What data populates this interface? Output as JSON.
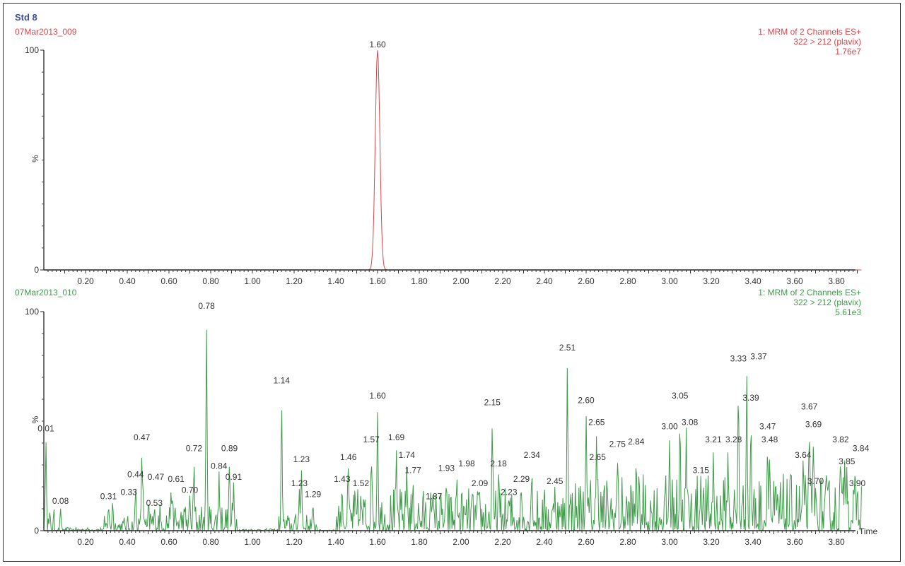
{
  "title": "Std 8",
  "colors": {
    "title": "#3b4f9b",
    "trace1": "#d8454a",
    "trace2": "#3f9a4a",
    "axis": "#222222"
  },
  "chart_data": [
    {
      "type": "line",
      "sample": "07Mar2013_009",
      "info": [
        "1: MRM of 2 Channels ES+",
        "322 > 212 (plavix)",
        "1.76e7"
      ],
      "ylabel": "%",
      "y_ticks": [
        "0",
        "100"
      ],
      "ylim": [
        0,
        100
      ],
      "xlim": [
        0,
        3.89
      ],
      "x_ticks": [
        "0.20",
        "0.40",
        "0.60",
        "0.80",
        "1.00",
        "1.20",
        "1.40",
        "1.60",
        "1.80",
        "2.00",
        "2.20",
        "2.40",
        "2.60",
        "2.80",
        "3.00",
        "3.20",
        "3.40",
        "3.60",
        "3.80"
      ],
      "peaks": [
        {
          "label": "1.60",
          "x": 1.6,
          "y": 100
        }
      ]
    },
    {
      "type": "line",
      "sample": "07Mar2013_010",
      "info": [
        "1: MRM of 2 Channels ES+",
        "322 > 212 (plavix)",
        "5.61e3"
      ],
      "ylabel": "%",
      "xlabel": "Time",
      "y_ticks": [
        "0",
        "100"
      ],
      "ylim": [
        0,
        100
      ],
      "xlim": [
        0,
        3.89
      ],
      "x_ticks": [
        "0.20",
        "0.40",
        "0.60",
        "0.80",
        "1.00",
        "1.20",
        "1.40",
        "1.60",
        "1.80",
        "2.00",
        "2.20",
        "2.40",
        "2.60",
        "2.80",
        "3.00",
        "3.20",
        "3.40",
        "3.60",
        "3.80"
      ],
      "peaks": [
        {
          "label": "0.01",
          "x": 0.01,
          "y": 44
        },
        {
          "label": "0.08",
          "x": 0.08,
          "y": 11
        },
        {
          "label": "0.31",
          "x": 0.31,
          "y": 13
        },
        {
          "label": "0.33",
          "x": 0.33,
          "y": 15
        },
        {
          "label": "0.44",
          "x": 0.44,
          "y": 23
        },
        {
          "label": "0.47",
          "x": 0.47,
          "y": 40
        },
        {
          "label": "0.47",
          "x": 0.475,
          "y": 22
        },
        {
          "label": "0.53",
          "x": 0.53,
          "y": 10
        },
        {
          "label": "0.61",
          "x": 0.61,
          "y": 21
        },
        {
          "label": "0.70",
          "x": 0.7,
          "y": 16
        },
        {
          "label": "0.72",
          "x": 0.72,
          "y": 35
        },
        {
          "label": "0.78",
          "x": 0.78,
          "y": 100
        },
        {
          "label": "0.84",
          "x": 0.84,
          "y": 27
        },
        {
          "label": "0.89",
          "x": 0.89,
          "y": 35
        },
        {
          "label": "0.91",
          "x": 0.91,
          "y": 22
        },
        {
          "label": "1.14",
          "x": 1.14,
          "y": 66
        },
        {
          "label": "1.23",
          "x": 1.235,
          "y": 30
        },
        {
          "label": "1.23",
          "x": 1.225,
          "y": 19
        },
        {
          "label": "1.29",
          "x": 1.29,
          "y": 14
        },
        {
          "label": "1.43",
          "x": 1.43,
          "y": 21
        },
        {
          "label": "1.46",
          "x": 1.46,
          "y": 31
        },
        {
          "label": "1.52",
          "x": 1.52,
          "y": 19
        },
        {
          "label": "1.57",
          "x": 1.57,
          "y": 39
        },
        {
          "label": "1.60",
          "x": 1.6,
          "y": 59
        },
        {
          "label": "1.69",
          "x": 1.69,
          "y": 40
        },
        {
          "label": "1.74",
          "x": 1.74,
          "y": 32
        },
        {
          "label": "1.77",
          "x": 1.77,
          "y": 25
        },
        {
          "label": "1.87",
          "x": 1.87,
          "y": 13
        },
        {
          "label": "1.93",
          "x": 1.93,
          "y": 26
        },
        {
          "label": "1.98",
          "x": 1.98,
          "y": 28
        },
        {
          "label": "2.09",
          "x": 2.09,
          "y": 19
        },
        {
          "label": "2.15",
          "x": 2.15,
          "y": 56
        },
        {
          "label": "2.18",
          "x": 2.18,
          "y": 28
        },
        {
          "label": "2.23",
          "x": 2.23,
          "y": 15
        },
        {
          "label": "2.29",
          "x": 2.29,
          "y": 21
        },
        {
          "label": "2.34",
          "x": 2.34,
          "y": 32
        },
        {
          "label": "2.45",
          "x": 2.45,
          "y": 20
        },
        {
          "label": "2.51",
          "x": 2.51,
          "y": 81
        },
        {
          "label": "2.60",
          "x": 2.6,
          "y": 57
        },
        {
          "label": "2.65",
          "x": 2.65,
          "y": 47
        },
        {
          "label": "2.65",
          "x": 2.655,
          "y": 31
        },
        {
          "label": "2.75",
          "x": 2.75,
          "y": 37
        },
        {
          "label": "2.84",
          "x": 2.84,
          "y": 38
        },
        {
          "label": "3.00",
          "x": 3.0,
          "y": 45
        },
        {
          "label": "3.05",
          "x": 3.05,
          "y": 59
        },
        {
          "label": "3.08",
          "x": 3.08,
          "y": 47
        },
        {
          "label": "3.15",
          "x": 3.15,
          "y": 25
        },
        {
          "label": "3.21",
          "x": 3.21,
          "y": 39
        },
        {
          "label": "3.28",
          "x": 3.28,
          "y": 39
        },
        {
          "label": "3.33",
          "x": 3.33,
          "y": 76
        },
        {
          "label": "3.37",
          "x": 3.37,
          "y": 77
        },
        {
          "label": "3.39",
          "x": 3.39,
          "y": 58
        },
        {
          "label": "3.47",
          "x": 3.47,
          "y": 45
        },
        {
          "label": "3.48",
          "x": 3.48,
          "y": 39
        },
        {
          "label": "3.64",
          "x": 3.64,
          "y": 32
        },
        {
          "label": "3.67",
          "x": 3.67,
          "y": 54
        },
        {
          "label": "3.69",
          "x": 3.69,
          "y": 46
        },
        {
          "label": "3.70",
          "x": 3.7,
          "y": 20
        },
        {
          "label": "3.82",
          "x": 3.82,
          "y": 39
        },
        {
          "label": "3.84",
          "x": 3.84,
          "y": 35
        },
        {
          "label": "3.85",
          "x": 3.85,
          "y": 29
        },
        {
          "label": "3.90",
          "x": 3.9,
          "y": 19
        }
      ]
    }
  ]
}
